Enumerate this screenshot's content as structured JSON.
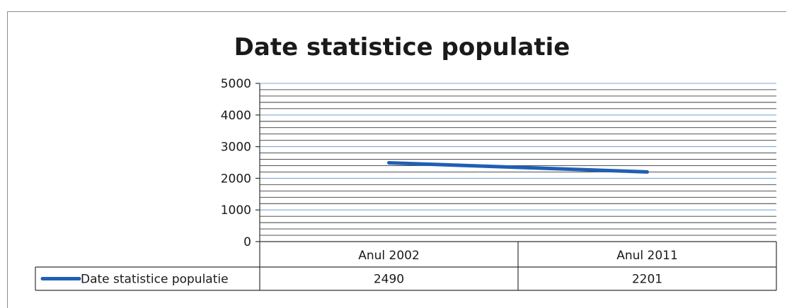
{
  "chart_data": {
    "type": "line",
    "title": "Date statistice populatie",
    "categories": [
      "Anul 2002",
      "Anul 2011"
    ],
    "series": [
      {
        "name": "Date statistice populatie",
        "values": [
          2490,
          2201
        ],
        "color": "#1f5fb4"
      }
    ],
    "ylim": [
      0,
      5000
    ],
    "yticks": [
      0,
      1000,
      2000,
      3000,
      4000,
      5000
    ],
    "grid": true,
    "data_table": true,
    "legend_in_table": true
  }
}
